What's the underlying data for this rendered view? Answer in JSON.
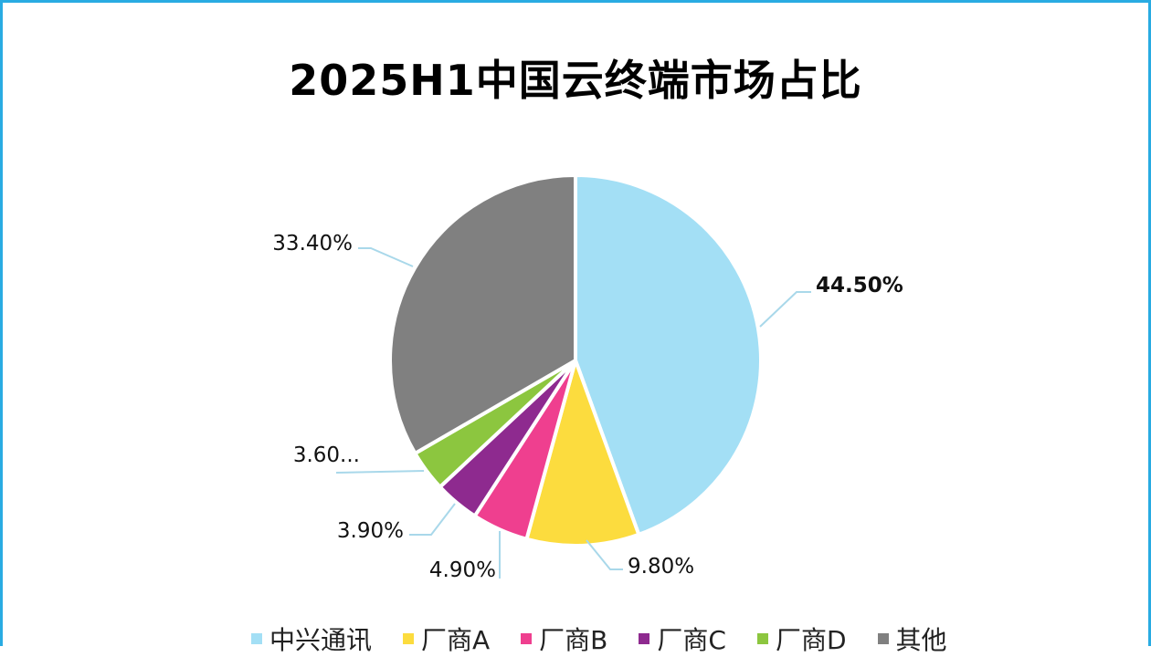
{
  "chart_data": {
    "type": "pie",
    "title": "2025H1中国云终端市场占比",
    "categories": [
      "中兴通讯",
      "厂商A",
      "厂商B",
      "厂商C",
      "厂商D",
      "其他"
    ],
    "values": [
      44.5,
      9.8,
      4.9,
      3.9,
      3.6,
      33.4
    ],
    "labels": [
      "44.50%",
      "9.80%",
      "4.90%",
      "3.90%",
      "3.60...",
      "33.40%"
    ],
    "colors": [
      "#a3dff5",
      "#fcdc3e",
      "#ef3f8f",
      "#8e2a8f",
      "#8cc63f",
      "#808080"
    ],
    "start_angle_deg": 0,
    "direction": "clockwise",
    "legend_position": "bottom",
    "highlighted_label_index": 0
  },
  "title": "2025H1中国云终端市场占比",
  "legend": [
    {
      "label": "中兴通讯",
      "color": "#a3dff5"
    },
    {
      "label": "厂商A",
      "color": "#fcdc3e"
    },
    {
      "label": "厂商B",
      "color": "#ef3f8f"
    },
    {
      "label": "厂商C",
      "color": "#8e2a8f"
    },
    {
      "label": "厂商D",
      "color": "#8cc63f"
    },
    {
      "label": "其他",
      "color": "#808080"
    }
  ],
  "frame_color": "#29abe2",
  "leader_color": "#a9d8ea"
}
